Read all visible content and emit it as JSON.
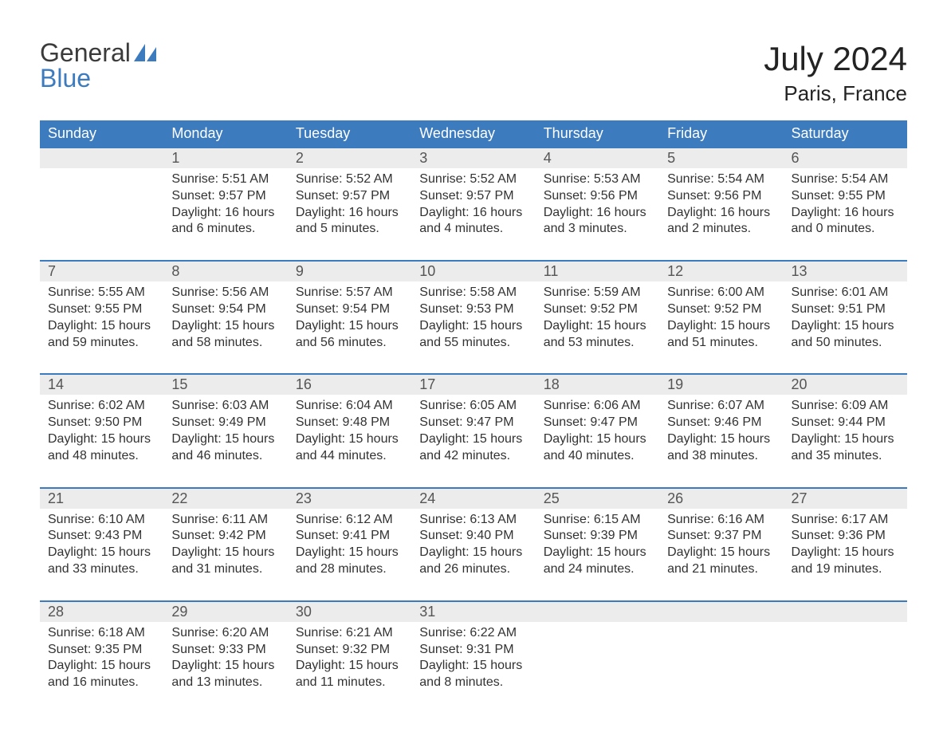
{
  "logo": {
    "word1": "General",
    "word2": "Blue"
  },
  "title": "July 2024",
  "location": "Paris, France",
  "colors": {
    "header_bg": "#3d7bbf",
    "header_fg": "#ffffff",
    "daynum_bg": "#ececec",
    "daynum_border": "#3d7bbf",
    "text": "#323232",
    "page_bg": "#ffffff"
  },
  "typography": {
    "title_fontsize": 42,
    "location_fontsize": 26,
    "header_fontsize": 18,
    "daynum_fontsize": 18,
    "body_fontsize": 16
  },
  "weekdays": [
    "Sunday",
    "Monday",
    "Tuesday",
    "Wednesday",
    "Thursday",
    "Friday",
    "Saturday"
  ],
  "weeks": [
    [
      {
        "day": "",
        "lines": []
      },
      {
        "day": "1",
        "lines": [
          "Sunrise: 5:51 AM",
          "Sunset: 9:57 PM",
          "Daylight: 16 hours",
          "and 6 minutes."
        ]
      },
      {
        "day": "2",
        "lines": [
          "Sunrise: 5:52 AM",
          "Sunset: 9:57 PM",
          "Daylight: 16 hours",
          "and 5 minutes."
        ]
      },
      {
        "day": "3",
        "lines": [
          "Sunrise: 5:52 AM",
          "Sunset: 9:57 PM",
          "Daylight: 16 hours",
          "and 4 minutes."
        ]
      },
      {
        "day": "4",
        "lines": [
          "Sunrise: 5:53 AM",
          "Sunset: 9:56 PM",
          "Daylight: 16 hours",
          "and 3 minutes."
        ]
      },
      {
        "day": "5",
        "lines": [
          "Sunrise: 5:54 AM",
          "Sunset: 9:56 PM",
          "Daylight: 16 hours",
          "and 2 minutes."
        ]
      },
      {
        "day": "6",
        "lines": [
          "Sunrise: 5:54 AM",
          "Sunset: 9:55 PM",
          "Daylight: 16 hours",
          "and 0 minutes."
        ]
      }
    ],
    [
      {
        "day": "7",
        "lines": [
          "Sunrise: 5:55 AM",
          "Sunset: 9:55 PM",
          "Daylight: 15 hours",
          "and 59 minutes."
        ]
      },
      {
        "day": "8",
        "lines": [
          "Sunrise: 5:56 AM",
          "Sunset: 9:54 PM",
          "Daylight: 15 hours",
          "and 58 minutes."
        ]
      },
      {
        "day": "9",
        "lines": [
          "Sunrise: 5:57 AM",
          "Sunset: 9:54 PM",
          "Daylight: 15 hours",
          "and 56 minutes."
        ]
      },
      {
        "day": "10",
        "lines": [
          "Sunrise: 5:58 AM",
          "Sunset: 9:53 PM",
          "Daylight: 15 hours",
          "and 55 minutes."
        ]
      },
      {
        "day": "11",
        "lines": [
          "Sunrise: 5:59 AM",
          "Sunset: 9:52 PM",
          "Daylight: 15 hours",
          "and 53 minutes."
        ]
      },
      {
        "day": "12",
        "lines": [
          "Sunrise: 6:00 AM",
          "Sunset: 9:52 PM",
          "Daylight: 15 hours",
          "and 51 minutes."
        ]
      },
      {
        "day": "13",
        "lines": [
          "Sunrise: 6:01 AM",
          "Sunset: 9:51 PM",
          "Daylight: 15 hours",
          "and 50 minutes."
        ]
      }
    ],
    [
      {
        "day": "14",
        "lines": [
          "Sunrise: 6:02 AM",
          "Sunset: 9:50 PM",
          "Daylight: 15 hours",
          "and 48 minutes."
        ]
      },
      {
        "day": "15",
        "lines": [
          "Sunrise: 6:03 AM",
          "Sunset: 9:49 PM",
          "Daylight: 15 hours",
          "and 46 minutes."
        ]
      },
      {
        "day": "16",
        "lines": [
          "Sunrise: 6:04 AM",
          "Sunset: 9:48 PM",
          "Daylight: 15 hours",
          "and 44 minutes."
        ]
      },
      {
        "day": "17",
        "lines": [
          "Sunrise: 6:05 AM",
          "Sunset: 9:47 PM",
          "Daylight: 15 hours",
          "and 42 minutes."
        ]
      },
      {
        "day": "18",
        "lines": [
          "Sunrise: 6:06 AM",
          "Sunset: 9:47 PM",
          "Daylight: 15 hours",
          "and 40 minutes."
        ]
      },
      {
        "day": "19",
        "lines": [
          "Sunrise: 6:07 AM",
          "Sunset: 9:46 PM",
          "Daylight: 15 hours",
          "and 38 minutes."
        ]
      },
      {
        "day": "20",
        "lines": [
          "Sunrise: 6:09 AM",
          "Sunset: 9:44 PM",
          "Daylight: 15 hours",
          "and 35 minutes."
        ]
      }
    ],
    [
      {
        "day": "21",
        "lines": [
          "Sunrise: 6:10 AM",
          "Sunset: 9:43 PM",
          "Daylight: 15 hours",
          "and 33 minutes."
        ]
      },
      {
        "day": "22",
        "lines": [
          "Sunrise: 6:11 AM",
          "Sunset: 9:42 PM",
          "Daylight: 15 hours",
          "and 31 minutes."
        ]
      },
      {
        "day": "23",
        "lines": [
          "Sunrise: 6:12 AM",
          "Sunset: 9:41 PM",
          "Daylight: 15 hours",
          "and 28 minutes."
        ]
      },
      {
        "day": "24",
        "lines": [
          "Sunrise: 6:13 AM",
          "Sunset: 9:40 PM",
          "Daylight: 15 hours",
          "and 26 minutes."
        ]
      },
      {
        "day": "25",
        "lines": [
          "Sunrise: 6:15 AM",
          "Sunset: 9:39 PM",
          "Daylight: 15 hours",
          "and 24 minutes."
        ]
      },
      {
        "day": "26",
        "lines": [
          "Sunrise: 6:16 AM",
          "Sunset: 9:37 PM",
          "Daylight: 15 hours",
          "and 21 minutes."
        ]
      },
      {
        "day": "27",
        "lines": [
          "Sunrise: 6:17 AM",
          "Sunset: 9:36 PM",
          "Daylight: 15 hours",
          "and 19 minutes."
        ]
      }
    ],
    [
      {
        "day": "28",
        "lines": [
          "Sunrise: 6:18 AM",
          "Sunset: 9:35 PM",
          "Daylight: 15 hours",
          "and 16 minutes."
        ]
      },
      {
        "day": "29",
        "lines": [
          "Sunrise: 6:20 AM",
          "Sunset: 9:33 PM",
          "Daylight: 15 hours",
          "and 13 minutes."
        ]
      },
      {
        "day": "30",
        "lines": [
          "Sunrise: 6:21 AM",
          "Sunset: 9:32 PM",
          "Daylight: 15 hours",
          "and 11 minutes."
        ]
      },
      {
        "day": "31",
        "lines": [
          "Sunrise: 6:22 AM",
          "Sunset: 9:31 PM",
          "Daylight: 15 hours",
          "and 8 minutes."
        ]
      },
      {
        "day": "",
        "lines": []
      },
      {
        "day": "",
        "lines": []
      },
      {
        "day": "",
        "lines": []
      }
    ]
  ]
}
